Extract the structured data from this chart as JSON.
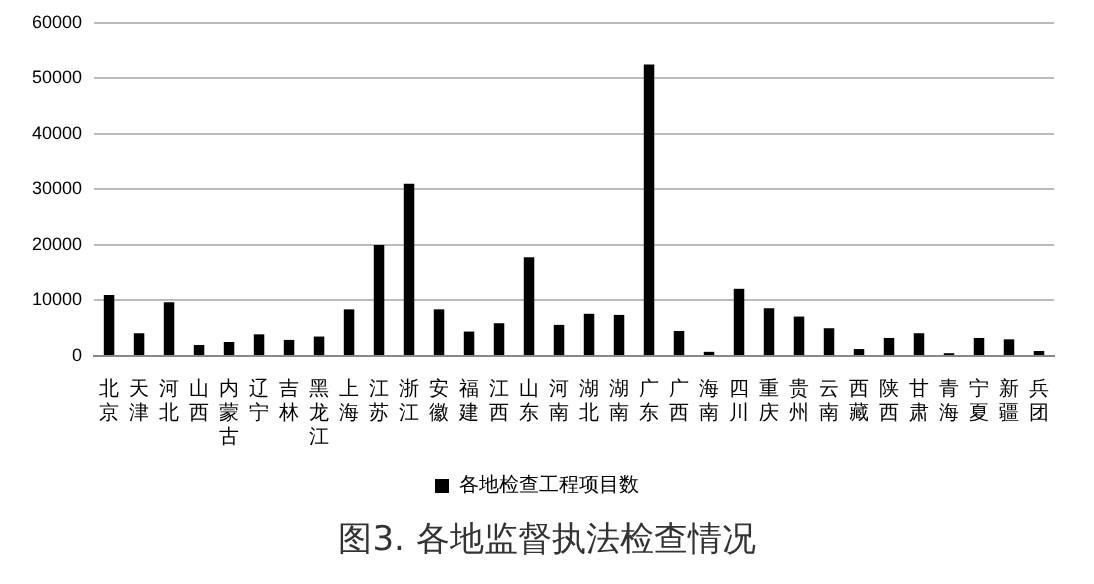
{
  "chart_data": {
    "type": "bar",
    "title": "图3. 各地监督执法检查情况",
    "categories": [
      "北京",
      "天津",
      "河北",
      "山西",
      "内蒙古",
      "辽宁",
      "吉林",
      "黑龙江",
      "上海",
      "江苏",
      "浙江",
      "安徽",
      "福建",
      "江西",
      "山东",
      "河南",
      "湖北",
      "湖南",
      "广东",
      "广西",
      "海南",
      "四川",
      "重庆",
      "贵州",
      "云南",
      "西藏",
      "陕西",
      "甘肃",
      "青海",
      "宁夏",
      "新疆",
      "兵团"
    ],
    "series": [
      {
        "name": "各地检查工程项目数",
        "color": "#000000",
        "values": [
          11000,
          4100,
          9700,
          2000,
          2500,
          3900,
          2900,
          3500,
          8400,
          20000,
          31000,
          8400,
          4400,
          5900,
          17800,
          5600,
          7600,
          7400,
          52500,
          4500,
          750,
          12100,
          8600,
          7100,
          5000,
          1250,
          3250,
          4100,
          500,
          3250,
          3000,
          900
        ]
      }
    ],
    "ylim": [
      0,
      60000
    ],
    "yticks": [
      0,
      10000,
      20000,
      30000,
      40000,
      50000,
      60000
    ],
    "grid": "y",
    "legend": "bottom"
  }
}
